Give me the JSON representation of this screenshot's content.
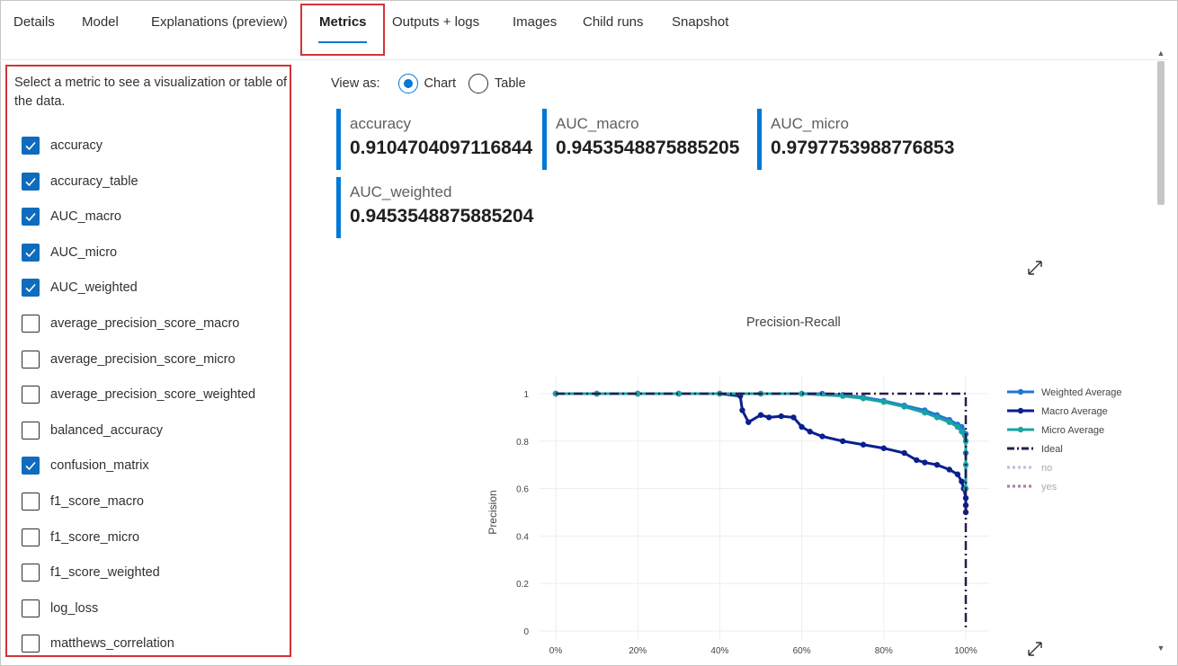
{
  "tabs": [
    {
      "label": "Details",
      "active": false
    },
    {
      "label": "Model",
      "active": false
    },
    {
      "label": "Explanations (preview)",
      "active": false
    },
    {
      "label": "Metrics",
      "active": true
    },
    {
      "label": "Outputs + logs",
      "active": false
    },
    {
      "label": "Images",
      "active": false
    },
    {
      "label": "Child runs",
      "active": false
    },
    {
      "label": "Snapshot",
      "active": false
    }
  ],
  "metrics_panel": {
    "intro": "Select a metric to see a visualization or table of the data.",
    "items": [
      {
        "label": "accuracy",
        "checked": true
      },
      {
        "label": "accuracy_table",
        "checked": true
      },
      {
        "label": "AUC_macro",
        "checked": true
      },
      {
        "label": "AUC_micro",
        "checked": true
      },
      {
        "label": "AUC_weighted",
        "checked": true
      },
      {
        "label": "average_precision_score_macro",
        "checked": false
      },
      {
        "label": "average_precision_score_micro",
        "checked": false
      },
      {
        "label": "average_precision_score_weighted",
        "checked": false
      },
      {
        "label": "balanced_accuracy",
        "checked": false
      },
      {
        "label": "confusion_matrix",
        "checked": true
      },
      {
        "label": "f1_score_macro",
        "checked": false
      },
      {
        "label": "f1_score_micro",
        "checked": false
      },
      {
        "label": "f1_score_weighted",
        "checked": false
      },
      {
        "label": "log_loss",
        "checked": false
      },
      {
        "label": "matthews_correlation",
        "checked": false
      }
    ]
  },
  "view_as": {
    "label": "View as:",
    "options": [
      {
        "label": "Chart",
        "selected": true
      },
      {
        "label": "Table",
        "selected": false
      }
    ]
  },
  "metric_cards": [
    {
      "name": "accuracy",
      "value": "0.9104704097116844"
    },
    {
      "name": "AUC_macro",
      "value": "0.9453548875885205"
    },
    {
      "name": "AUC_micro",
      "value": "0.9797753988776853"
    },
    {
      "name": "AUC_weighted",
      "value": "0.9453548875885204"
    }
  ],
  "icons": {
    "expand": "expand-diagonal-icon",
    "scroll_up": "chevron-up-icon",
    "scroll_down": "chevron-down-icon",
    "checkmark": "checkmark-icon"
  },
  "colors": {
    "accent": "#0078d4",
    "highlight_border": "#d13438",
    "checkbox_checked": "#0f6cbd"
  },
  "chart_data": {
    "type": "line",
    "title": "Precision-Recall",
    "xlabel": "",
    "ylabel": "Precision",
    "x_ticks": [
      "0%",
      "20%",
      "40%",
      "60%",
      "80%",
      "100%"
    ],
    "y_ticks": [
      "0",
      "0.2",
      "0.4",
      "0.6",
      "0.8",
      "1"
    ],
    "xlim": [
      0,
      1
    ],
    "ylim": [
      0,
      1
    ],
    "grid": true,
    "legend_position": "right",
    "series": [
      {
        "name": "Weighted Average",
        "color": "#1f77d4",
        "style": "solid-markers",
        "x": [
          0,
          0.1,
          0.2,
          0.3,
          0.4,
          0.5,
          0.6,
          0.65,
          0.7,
          0.75,
          0.8,
          0.85,
          0.9,
          0.93,
          0.96,
          0.98,
          0.99,
          1.0,
          1.0
        ],
        "y": [
          1,
          1,
          1,
          1,
          1,
          1,
          1,
          1,
          0.995,
          0.985,
          0.97,
          0.95,
          0.93,
          0.91,
          0.89,
          0.87,
          0.86,
          0.83,
          0.75
        ]
      },
      {
        "name": "Macro Average",
        "color": "#0a1f8f",
        "style": "solid-markers",
        "x": [
          0,
          0.1,
          0.2,
          0.3,
          0.4,
          0.45,
          0.455,
          0.47,
          0.5,
          0.52,
          0.55,
          0.58,
          0.6,
          0.62,
          0.65,
          0.7,
          0.75,
          0.8,
          0.85,
          0.88,
          0.9,
          0.93,
          0.96,
          0.98,
          0.99,
          0.995,
          1.0,
          1.0,
          1.0
        ],
        "y": [
          1,
          1,
          1,
          1,
          1,
          0.99,
          0.93,
          0.88,
          0.91,
          0.9,
          0.905,
          0.9,
          0.86,
          0.84,
          0.82,
          0.8,
          0.785,
          0.77,
          0.75,
          0.72,
          0.71,
          0.7,
          0.68,
          0.66,
          0.63,
          0.6,
          0.56,
          0.53,
          0.5
        ]
      },
      {
        "name": "Micro Average",
        "color": "#1aa3a3",
        "style": "solid-markers",
        "x": [
          0,
          0.1,
          0.2,
          0.3,
          0.4,
          0.5,
          0.6,
          0.7,
          0.75,
          0.8,
          0.85,
          0.9,
          0.93,
          0.96,
          0.98,
          0.99,
          1.0,
          1.0,
          1.0
        ],
        "y": [
          1,
          1,
          1,
          1,
          1,
          1,
          1,
          0.99,
          0.98,
          0.965,
          0.945,
          0.92,
          0.9,
          0.88,
          0.86,
          0.84,
          0.8,
          0.7,
          0.6
        ]
      },
      {
        "name": "Ideal",
        "color": "#2b1a4d",
        "style": "dash-dot",
        "x": [
          0,
          1,
          1
        ],
        "y": [
          1,
          1,
          0
        ]
      },
      {
        "name": "no",
        "color": "#c9b6dd",
        "style": "dotted",
        "x": [],
        "y": []
      },
      {
        "name": "yes",
        "color": "#a67aa6",
        "style": "dotted",
        "x": [],
        "y": []
      }
    ]
  }
}
